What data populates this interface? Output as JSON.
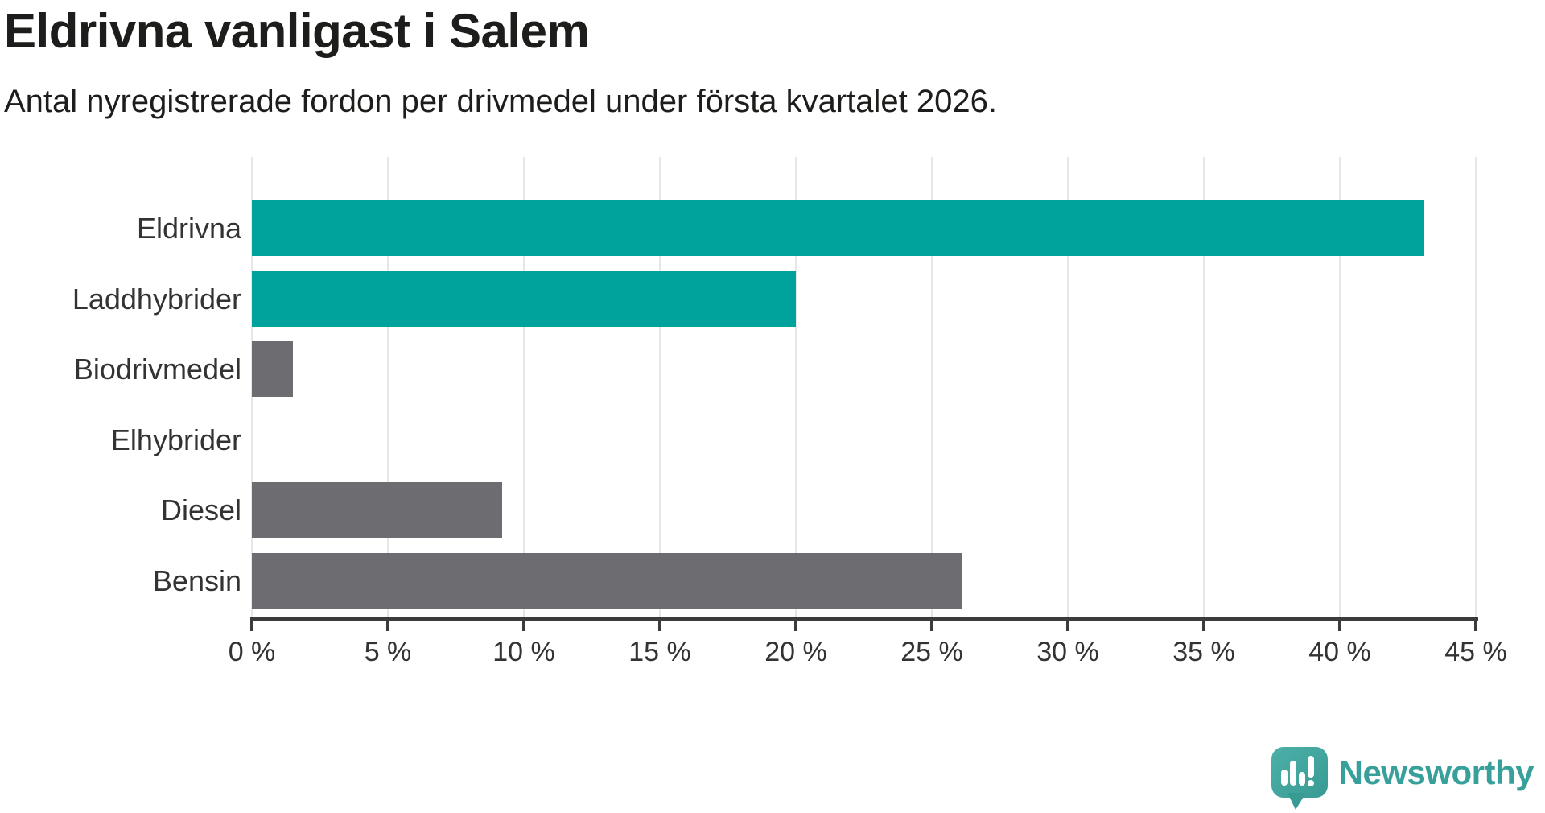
{
  "title": "Eldrivna vanligast i Salem",
  "subtitle": "Antal nyregistrerade fordon per drivmedel under första kvartalet 2026.",
  "colors": {
    "teal": "#00a39b",
    "gray": "#6c6c71",
    "gridline": "#e7e7e7",
    "axis": "#3b3b3b",
    "title_text": "#1d1d1b",
    "tick_text": "#333333",
    "logo_teal": "#38a09a"
  },
  "chart_data": {
    "type": "bar",
    "orientation": "horizontal",
    "title": "Eldrivna vanligast i Salem",
    "subtitle": "Antal nyregistrerade fordon per drivmedel under första kvartalet 2026.",
    "categories": [
      "Eldrivna",
      "Laddhybrider",
      "Biodrivmedel",
      "Elhybrider",
      "Diesel",
      "Bensin"
    ],
    "values": [
      43.1,
      20,
      1.5,
      0,
      9.2,
      26.1
    ],
    "unit": "%",
    "bar_colors": [
      "#00a39b",
      "#00a39b",
      "#6c6c71",
      "#6c6c71",
      "#6c6c71",
      "#6c6c71"
    ],
    "xlim": [
      0,
      45
    ],
    "x_ticks": [
      0,
      5,
      10,
      15,
      20,
      25,
      30,
      35,
      40,
      45
    ],
    "x_tick_labels": [
      "0 %",
      "5 %",
      "10 %",
      "15 %",
      "20 %",
      "25 %",
      "30 %",
      "35 %",
      "40 %",
      "45 %"
    ],
    "grid": "vertical-gridlines",
    "legend": "none"
  },
  "footer": {
    "brand": "Newsworthy"
  }
}
